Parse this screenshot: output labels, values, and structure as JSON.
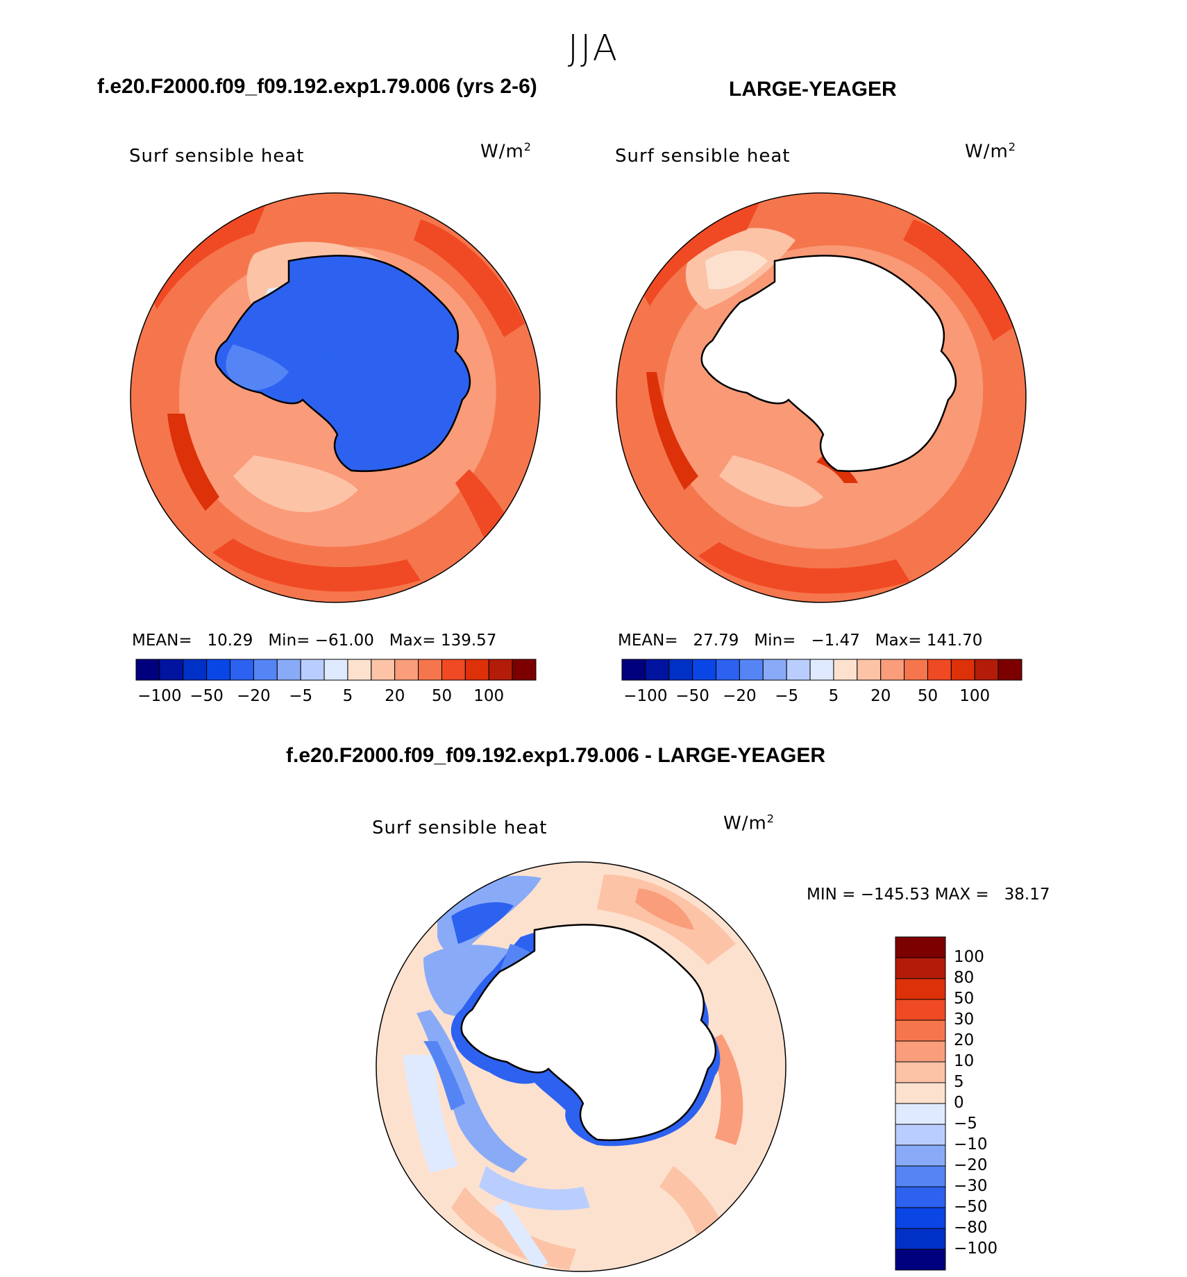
{
  "season": "JJA",
  "left_panel": {
    "case": "f.e20.F2000.f09_f09.192.exp1.79.006 (yrs 2-6)",
    "variable": "Surf sensible heat",
    "units_base": "W/m",
    "units_exp": "2",
    "stats": {
      "mean_label": "MEAN=",
      "mean": "10.29",
      "min_label": "Min=",
      "min": "−61.00",
      "max_label": "Max=",
      "max": "139.57"
    }
  },
  "right_panel": {
    "case": "LARGE-YEAGER",
    "variable": "Surf sensible heat",
    "units_base": "W/m",
    "units_exp": "2",
    "stats": {
      "mean_label": "MEAN=",
      "mean": "27.79",
      "min_label": "Min=",
      "min": "−1.47",
      "max_label": "Max=",
      "max": "141.70"
    }
  },
  "diff_panel": {
    "title": "f.e20.F2000.f09_f09.192.exp1.79.006 - LARGE-YEAGER",
    "variable": "Surf sensible heat",
    "units_base": "W/m",
    "units_exp": "2",
    "minmax": "MIN = −145.53 MAX =   38.17"
  },
  "abs_colorbar": {
    "colors": [
      "#00007f",
      "#0014a0",
      "#0031c6",
      "#0a46e6",
      "#2d62f0",
      "#5585f5",
      "#89abf7",
      "#b9ceff",
      "#dfeaff",
      "#fde1cf",
      "#fcc3a7",
      "#fa9d7b",
      "#f5764d",
      "#f04a24",
      "#dc3109",
      "#b31c08",
      "#7d0000"
    ],
    "tick_labels": [
      "−100",
      "−50",
      "−20",
      "−5",
      "5",
      "20",
      "50",
      "100"
    ]
  },
  "diff_colorbar": {
    "colors": [
      "#7d0000",
      "#b31c08",
      "#dc3109",
      "#f04a24",
      "#f5764d",
      "#fa9d7b",
      "#fcc3a7",
      "#fde1cf",
      "#dfeaff",
      "#b9ceff",
      "#89abf7",
      "#5585f5",
      "#2d62f0",
      "#0a46e6",
      "#0031c6",
      "#00007f"
    ],
    "tick_labels": [
      "100",
      "80",
      "50",
      "30",
      "20",
      "10",
      "5",
      "0",
      "−5",
      "−10",
      "−20",
      "−30",
      "−50",
      "−80",
      "−100"
    ]
  }
}
